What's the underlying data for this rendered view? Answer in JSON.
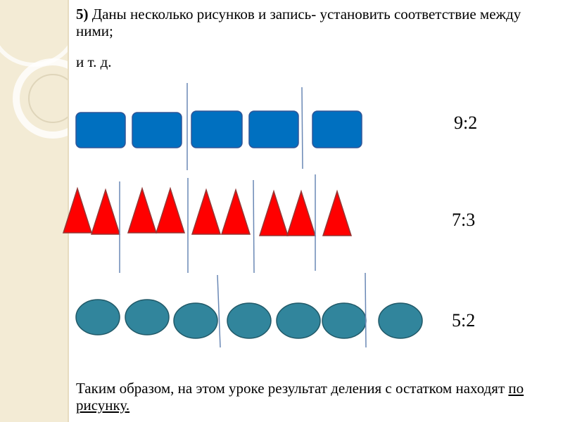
{
  "heading": {
    "number": "5)",
    "text": " Даны несколько рисунков и запись-  установить соответствие между ними;"
  },
  "etc": "и т. д.",
  "rows": [
    {
      "shape": "rounded-rectangle",
      "color": "#0070c0",
      "count": 5,
      "ratio": "9:2"
    },
    {
      "shape": "triangle",
      "color": "#ff0000",
      "count": 9,
      "ratio": "7:3"
    },
    {
      "shape": "ellipse",
      "color": "#31859c",
      "count": 7,
      "ratio": "5:2"
    }
  ],
  "conclusion": {
    "text": "Таким образом, на этом уроке результат деления с остатком находят ",
    "underlined": "по рисунку."
  }
}
